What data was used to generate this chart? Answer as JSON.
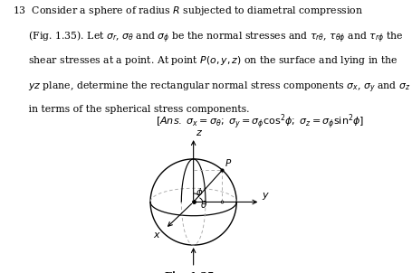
{
  "background_color": "#ffffff",
  "sphere_color": "#000000",
  "dash_color": "#aaaaaa",
  "lw_sphere": 1.0,
  "lw_axis": 0.8,
  "lw_dash": 0.65,
  "phi_deg": 42,
  "theta_deg": 35,
  "text_fontsize": 7.8,
  "label_fontsize": 7.5,
  "answer_fontsize": 8.0,
  "caption_bold_fontsize": 8.0,
  "caption_italic_fontsize": 7.8,
  "sphere_r": 1.0,
  "eq_b": 0.32,
  "inner_eq_b": 0.28,
  "fig_text_top": "13  Consider a sphere of radius $R$ subjected to diametral compression",
  "fig_text_l2": "     (Fig. 1.35). Let $\\sigma_r$, $\\sigma_\\theta$ and $\\sigma_\\phi$ be the normal stresses and $\\tau_{r\\theta}$, $\\tau_{\\theta\\phi}$ and $\\tau_{r\\phi}$ the",
  "fig_text_l3": "     shear stresses at a point. At point $P(o, y, z)$ on the surface and lying in the",
  "fig_text_l4": "     $yz$ plane, determine the rectangular normal stress components $\\sigma_x$, $\\sigma_y$ and $\\sigma_z$",
  "fig_text_l5": "     in terms of the spherical stress components.",
  "answer": "$[Ans.\\;\\sigma_x = \\sigma_\\theta;\\;\\sigma_y = \\sigma_\\phi \\cos^2\\!\\phi;\\;\\sigma_z = \\sigma_\\phi \\sin^2\\!\\phi]$"
}
